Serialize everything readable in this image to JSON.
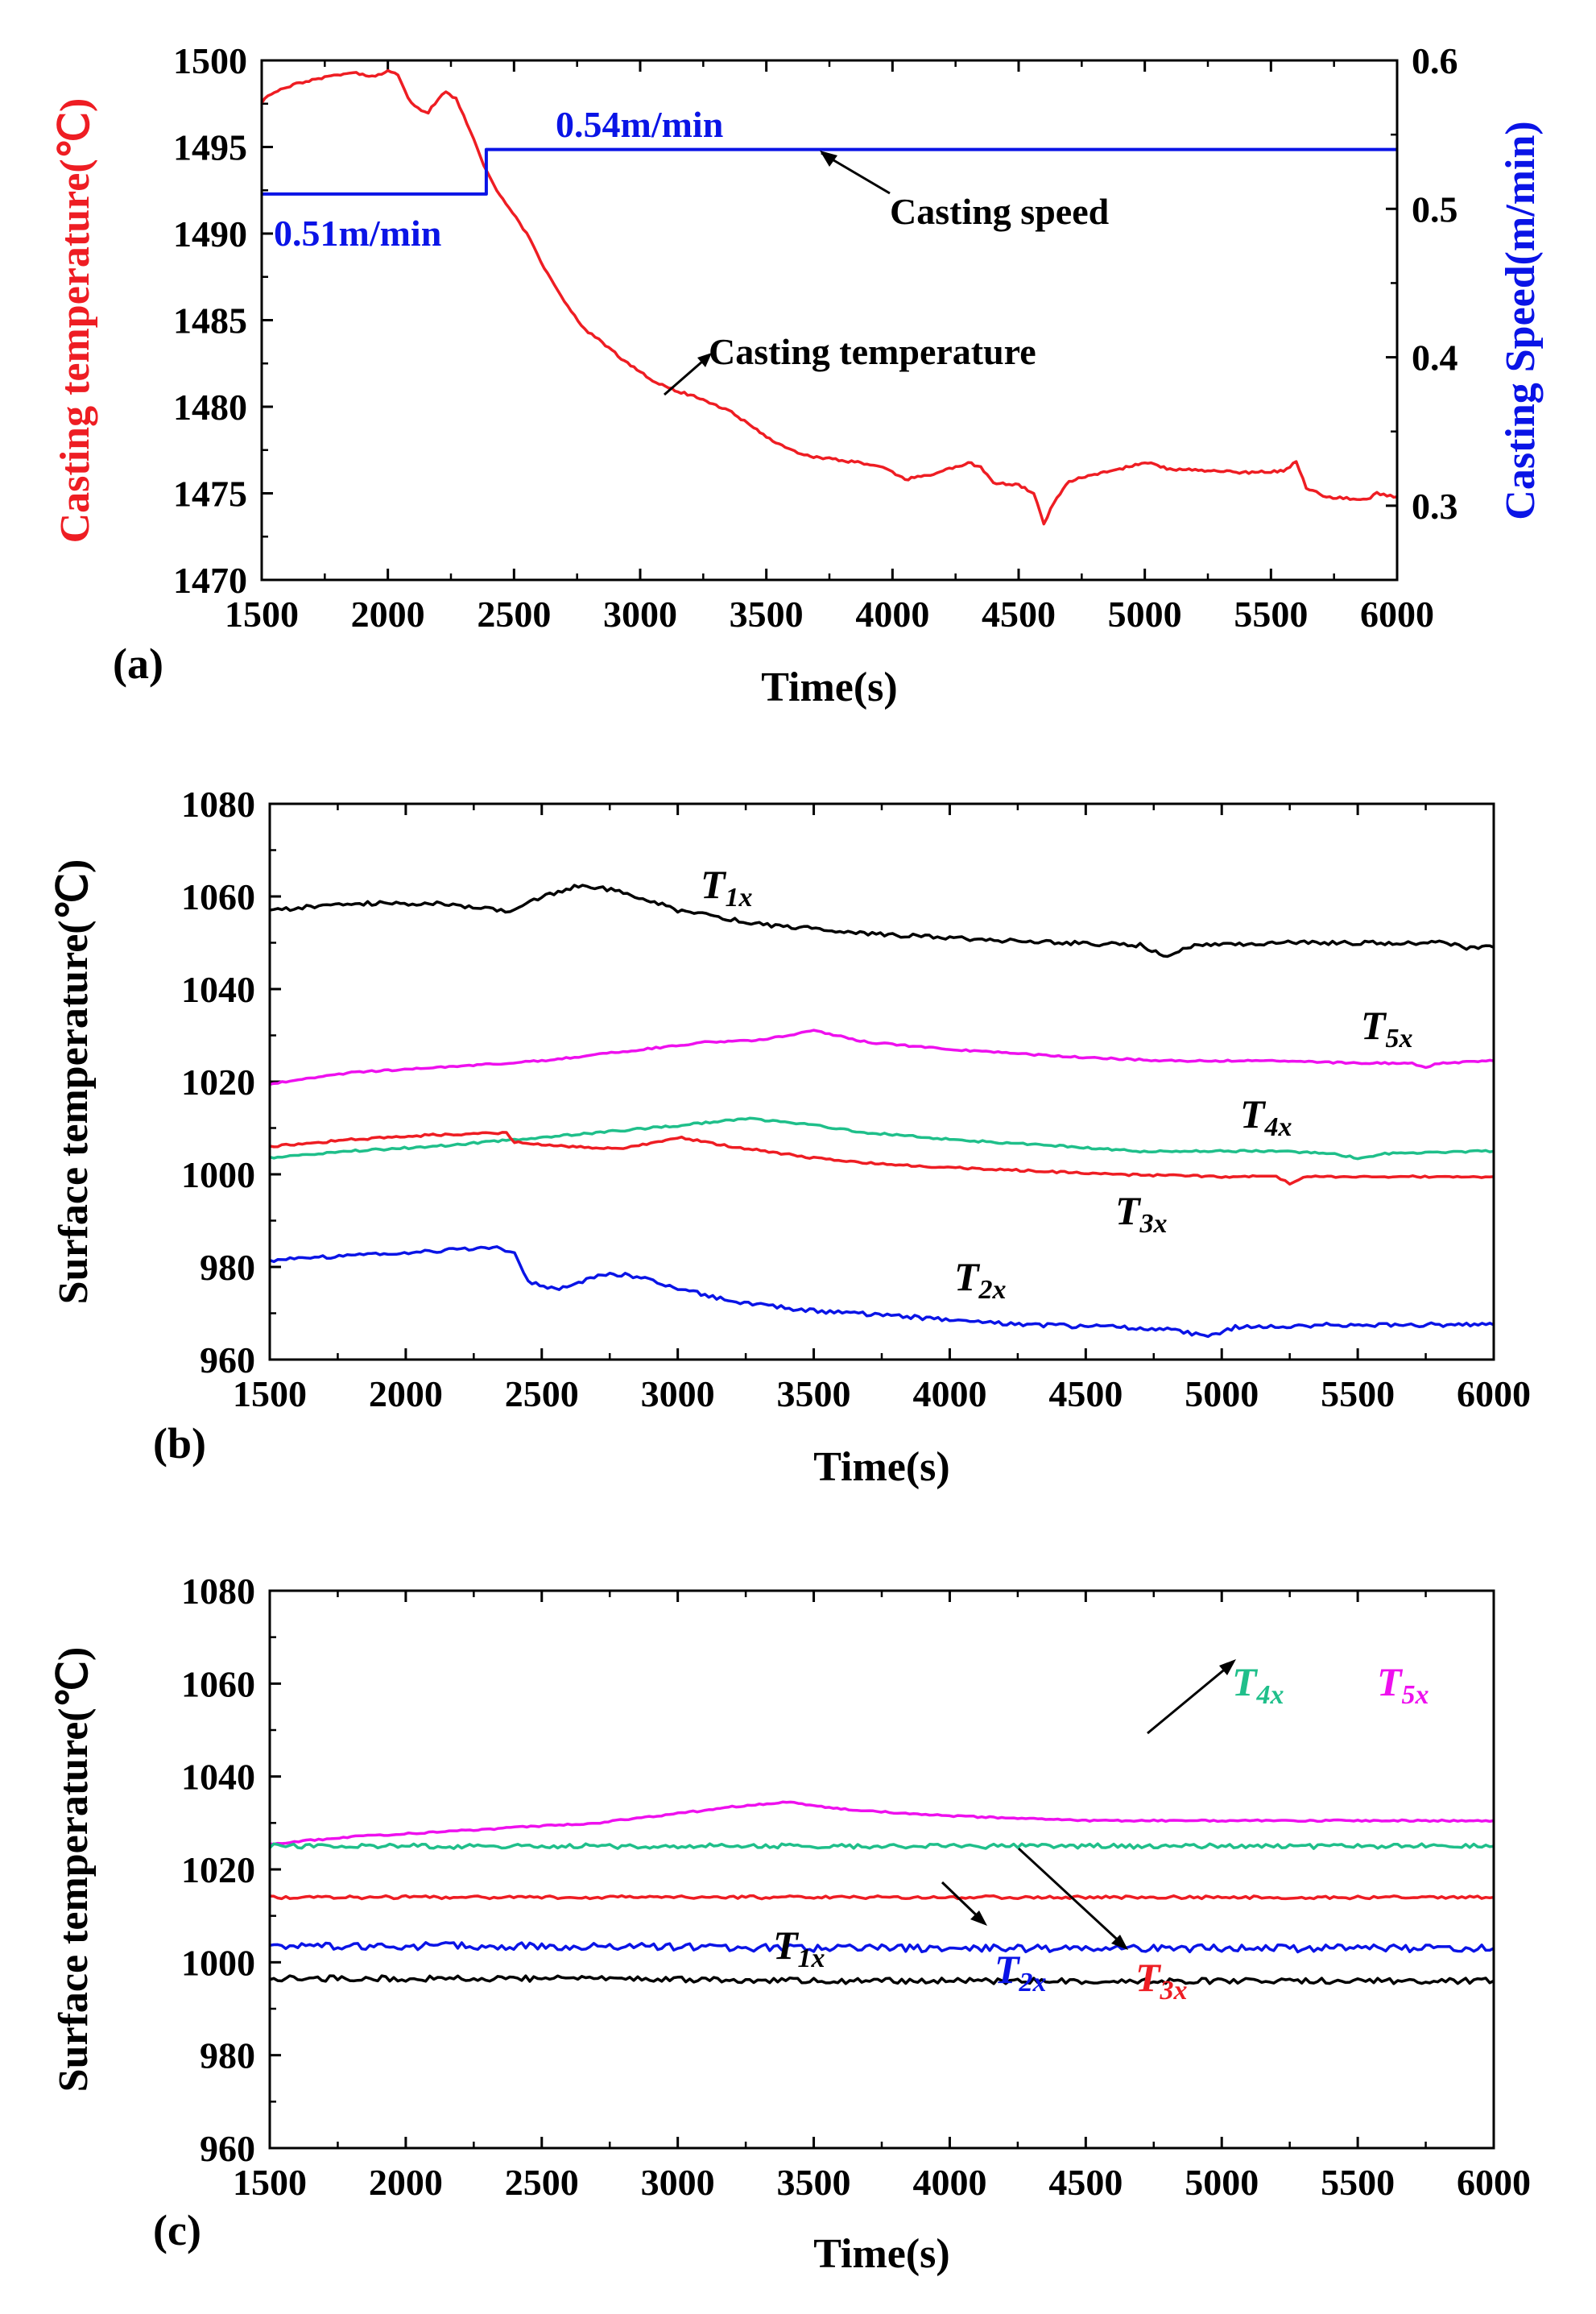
{
  "colors": {
    "red": "#ee1d23",
    "blue": "#0a14e6",
    "black": "#000000",
    "green": "#1fbf8a",
    "magenta": "#ee10ee"
  },
  "x_axis_label": "Time(s)",
  "chart_data": [
    {
      "id": "a",
      "panel_tag": "(a)",
      "type": "line",
      "xlabel": "Time(s)",
      "ylabel_left": "Casting temperature(℃)",
      "ylabel_right": "Casting Speed(m/min)",
      "xlim": [
        1500,
        6000
      ],
      "ylim_left": [
        1470,
        1500
      ],
      "ylim_right": [
        0.25,
        0.6
      ],
      "x_ticks": [
        1500,
        2000,
        2500,
        3000,
        3500,
        4000,
        4500,
        5000,
        5500,
        6000
      ],
      "y_ticks_left": [
        1470,
        1475,
        1480,
        1485,
        1490,
        1495,
        1500
      ],
      "y_ticks_right": [
        "0.3",
        "0.4",
        "0.5",
        "0.6"
      ],
      "series": [
        {
          "name": "Casting temperature",
          "axis": "left",
          "color": "#ee1d23",
          "points": [
            [
              1500,
              1497.6
            ],
            [
              1550,
              1498.2
            ],
            [
              1650,
              1498.7
            ],
            [
              1750,
              1499.0
            ],
            [
              1850,
              1499.3
            ],
            [
              1950,
              1499.1
            ],
            [
              2000,
              1499.4
            ],
            [
              2040,
              1499.2
            ],
            [
              2080,
              1497.8
            ],
            [
              2120,
              1497.2
            ],
            [
              2160,
              1497.0
            ],
            [
              2200,
              1497.8
            ],
            [
              2230,
              1498.2
            ],
            [
              2270,
              1497.8
            ],
            [
              2300,
              1496.8
            ],
            [
              2340,
              1495.5
            ],
            [
              2380,
              1494.0
            ],
            [
              2420,
              1492.8
            ],
            [
              2480,
              1491.5
            ],
            [
              2550,
              1490.0
            ],
            [
              2620,
              1488.0
            ],
            [
              2700,
              1486.0
            ],
            [
              2780,
              1484.5
            ],
            [
              2850,
              1483.7
            ],
            [
              2950,
              1482.5
            ],
            [
              3050,
              1481.5
            ],
            [
              3150,
              1480.9
            ],
            [
              3250,
              1480.4
            ],
            [
              3350,
              1479.8
            ],
            [
              3450,
              1478.8
            ],
            [
              3550,
              1477.8
            ],
            [
              3650,
              1477.2
            ],
            [
              3800,
              1476.9
            ],
            [
              3950,
              1476.6
            ],
            [
              4050,
              1475.8
            ],
            [
              4150,
              1476.1
            ],
            [
              4250,
              1476.5
            ],
            [
              4300,
              1476.8
            ],
            [
              4350,
              1476.5
            ],
            [
              4400,
              1475.6
            ],
            [
              4500,
              1475.5
            ],
            [
              4560,
              1475.0
            ],
            [
              4600,
              1473.2
            ],
            [
              4640,
              1474.5
            ],
            [
              4700,
              1475.7
            ],
            [
              4800,
              1476.1
            ],
            [
              4900,
              1476.4
            ],
            [
              5000,
              1476.8
            ],
            [
              5100,
              1476.4
            ],
            [
              5250,
              1476.3
            ],
            [
              5400,
              1476.2
            ],
            [
              5550,
              1476.3
            ],
            [
              5600,
              1476.8
            ],
            [
              5640,
              1475.3
            ],
            [
              5720,
              1474.8
            ],
            [
              5800,
              1474.7
            ],
            [
              5880,
              1474.6
            ],
            [
              5920,
              1475.0
            ],
            [
              6000,
              1474.8
            ]
          ]
        },
        {
          "name": "Casting speed",
          "axis": "right",
          "color": "#0a14e6",
          "points": [
            [
              1500,
              0.51
            ],
            [
              2390,
              0.51
            ],
            [
              2390,
              0.54
            ],
            [
              6000,
              0.54
            ]
          ]
        }
      ],
      "annotations": [
        {
          "text": "0.54m/min",
          "color": "#0a14e6"
        },
        {
          "text": "0.51m/min",
          "color": "#0a14e6"
        },
        {
          "text": "Casting speed",
          "color": "#000000"
        },
        {
          "text": "Casting temperature",
          "color": "#000000"
        }
      ]
    },
    {
      "id": "b",
      "panel_tag": "(b)",
      "type": "line",
      "xlabel": "Time(s)",
      "ylabel": "Surface temperature(℃)",
      "xlim": [
        1500,
        6000
      ],
      "ylim": [
        960,
        1080
      ],
      "x_ticks": [
        1500,
        2000,
        2500,
        3000,
        3500,
        4000,
        4500,
        5000,
        5500,
        6000
      ],
      "y_ticks": [
        960,
        980,
        1000,
        1020,
        1040,
        1060,
        1080
      ],
      "series": [
        {
          "name": "T1x",
          "label_main": "T",
          "label_sub": "1x",
          "color": "#000000",
          "points": [
            [
              1500,
              1057
            ],
            [
              1800,
              1058.5
            ],
            [
              2100,
              1058.5
            ],
            [
              2350,
              1057
            ],
            [
              2400,
              1057
            ],
            [
              2500,
              1060
            ],
            [
              2650,
              1062.5
            ],
            [
              2800,
              1061
            ],
            [
              3000,
              1057
            ],
            [
              3300,
              1054
            ],
            [
              3700,
              1052
            ],
            [
              4000,
              1051
            ],
            [
              4400,
              1050
            ],
            [
              4700,
              1049.5
            ],
            [
              4800,
              1047
            ],
            [
              4900,
              1049.5
            ],
            [
              5200,
              1050
            ],
            [
              5600,
              1050
            ],
            [
              5800,
              1050
            ],
            [
              5900,
              1049
            ],
            [
              6000,
              1049
            ]
          ]
        },
        {
          "name": "T5x",
          "label_main": "T",
          "label_sub": "5x",
          "color": "#ee10ee",
          "points": [
            [
              1500,
              1019.5
            ],
            [
              1800,
              1022
            ],
            [
              2100,
              1023
            ],
            [
              2500,
              1024.5
            ],
            [
              2800,
              1026.5
            ],
            [
              3100,
              1028.5
            ],
            [
              3300,
              1029
            ],
            [
              3500,
              1031
            ],
            [
              3700,
              1028.5
            ],
            [
              4000,
              1027
            ],
            [
              4400,
              1025.5
            ],
            [
              4800,
              1024.5
            ],
            [
              5200,
              1024.5
            ],
            [
              5500,
              1024
            ],
            [
              5700,
              1024
            ],
            [
              5750,
              1023
            ],
            [
              5800,
              1024
            ],
            [
              6000,
              1024.5
            ]
          ]
        },
        {
          "name": "T4x",
          "label_main": "T",
          "label_sub": "4x",
          "color": "#1fbf8a",
          "points": [
            [
              1500,
              1003.5
            ],
            [
              1800,
              1005
            ],
            [
              2100,
              1006
            ],
            [
              2400,
              1007.5
            ],
            [
              2700,
              1009
            ],
            [
              3000,
              1010.5
            ],
            [
              3250,
              1012
            ],
            [
              3450,
              1011
            ],
            [
              3700,
              1009
            ],
            [
              4000,
              1007.5
            ],
            [
              4300,
              1006.5
            ],
            [
              4700,
              1005
            ],
            [
              5200,
              1005
            ],
            [
              5400,
              1004.5
            ],
            [
              5500,
              1003.5
            ],
            [
              5600,
              1004.5
            ],
            [
              6000,
              1005
            ]
          ]
        },
        {
          "name": "T3x",
          "label_main": "T",
          "label_sub": "3x",
          "color": "#ee1d23",
          "points": [
            [
              1500,
              1006
            ],
            [
              1800,
              1007.5
            ],
            [
              2100,
              1008.5
            ],
            [
              2370,
              1009
            ],
            [
              2400,
              1007
            ],
            [
              2600,
              1006
            ],
            [
              2800,
              1005.5
            ],
            [
              3000,
              1008
            ],
            [
              3200,
              1006
            ],
            [
              3500,
              1003.5
            ],
            [
              3800,
              1002
            ],
            [
              4200,
              1001
            ],
            [
              4600,
              1000
            ],
            [
              5000,
              999.5
            ],
            [
              5200,
              999.5
            ],
            [
              5250,
              998
            ],
            [
              5300,
              999.5
            ],
            [
              6000,
              999.5
            ]
          ]
        },
        {
          "name": "T2x",
          "label_main": "T",
          "label_sub": "2x",
          "color": "#0a14e6",
          "points": [
            [
              1500,
              981.5
            ],
            [
              1800,
              982.5
            ],
            [
              2100,
              983.5
            ],
            [
              2350,
              984
            ],
            [
              2400,
              983
            ],
            [
              2450,
              977
            ],
            [
              2550,
              975
            ],
            [
              2650,
              977
            ],
            [
              2750,
              978.5
            ],
            [
              2850,
              978
            ],
            [
              3000,
              975.5
            ],
            [
              3200,
              972.5
            ],
            [
              3500,
              970.5
            ],
            [
              3800,
              969.5
            ],
            [
              4000,
              968.5
            ],
            [
              4300,
              967.5
            ],
            [
              4600,
              967
            ],
            [
              4800,
              966.5
            ],
            [
              4950,
              965
            ],
            [
              5050,
              967
            ],
            [
              5400,
              967.5
            ],
            [
              5800,
              967.5
            ],
            [
              6000,
              967.5
            ]
          ]
        }
      ]
    },
    {
      "id": "c",
      "panel_tag": "(c)",
      "type": "line",
      "xlabel": "Time(s)",
      "ylabel": "Surface temperature(℃)",
      "xlim": [
        1500,
        6000
      ],
      "ylim": [
        960,
        1080
      ],
      "x_ticks": [
        1500,
        2000,
        2500,
        3000,
        3500,
        4000,
        4500,
        5000,
        5500,
        6000
      ],
      "y_ticks": [
        960,
        980,
        1000,
        1020,
        1040,
        1060,
        1080
      ],
      "series": [
        {
          "name": "T5x",
          "label_main": "T",
          "label_sub": "5x",
          "color": "#ee10ee",
          "points": [
            [
              1500,
              1025.5
            ],
            [
              1800,
              1027
            ],
            [
              2100,
              1028
            ],
            [
              2400,
              1029
            ],
            [
              2700,
              1030
            ],
            [
              3000,
              1032
            ],
            [
              3200,
              1033.5
            ],
            [
              3400,
              1034.5
            ],
            [
              3600,
              1033
            ],
            [
              4000,
              1031.5
            ],
            [
              4500,
              1030.5
            ],
            [
              5000,
              1030.5
            ],
            [
              5500,
              1030.5
            ],
            [
              6000,
              1030.5
            ]
          ]
        },
        {
          "name": "T4x",
          "label_main": "T",
          "label_sub": "4x",
          "color": "#1fbf8a",
          "points": [
            [
              1500,
              1025
            ],
            [
              2500,
              1025
            ],
            [
              3500,
              1025
            ],
            [
              4500,
              1025
            ],
            [
              5500,
              1025
            ],
            [
              6000,
              1025
            ]
          ]
        },
        {
          "name": "T3x",
          "label_main": "T",
          "label_sub": "3x",
          "color": "#ee1d23",
          "points": [
            [
              1500,
              1014
            ],
            [
              2500,
              1014
            ],
            [
              3500,
              1014
            ],
            [
              4500,
              1014
            ],
            [
              5500,
              1014
            ],
            [
              6000,
              1014
            ]
          ]
        },
        {
          "name": "T2x",
          "label_main": "T",
          "label_sub": "2x",
          "color": "#0a14e6",
          "points": [
            [
              1500,
              1003.5
            ],
            [
              2500,
              1003.5
            ],
            [
              3500,
              1003
            ],
            [
              4500,
              1003
            ],
            [
              5500,
              1003
            ],
            [
              6000,
              1003
            ]
          ]
        },
        {
          "name": "T1x",
          "label_main": "T",
          "label_sub": "1x",
          "color": "#000000",
          "points": [
            [
              1500,
              996.5
            ],
            [
              2500,
              996.5
            ],
            [
              3500,
              996
            ],
            [
              4500,
              996
            ],
            [
              5500,
              996
            ],
            [
              6000,
              996
            ]
          ]
        }
      ]
    }
  ]
}
